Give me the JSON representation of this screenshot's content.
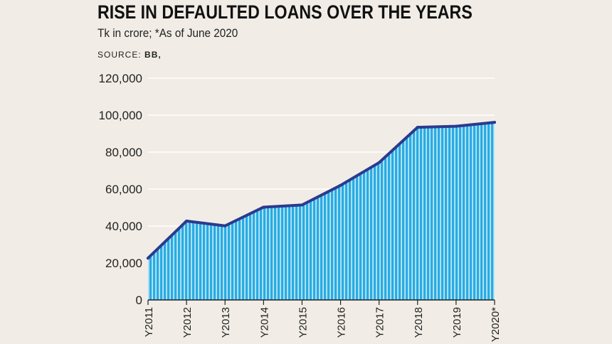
{
  "title": "RISE IN DEFAULTED LOANS OVER THE YEARS",
  "subtitle": "Tk in crore; *As of June 2020",
  "source_label": "SOURCE:",
  "source_value": "BB,",
  "colors": {
    "background": "#f1ede6",
    "area_fill": "#29abe2",
    "area_stripe": "#b9e6f7",
    "line": "#2b3a8f",
    "grid": "#ffffff",
    "axis": "#222222"
  },
  "chart_data": {
    "type": "area",
    "x": [
      "Y2011",
      "Y2012",
      "Y2013",
      "Y2014",
      "Y2015",
      "Y2016",
      "Y2017",
      "Y2018",
      "Y2019",
      "Y2020*"
    ],
    "series": [
      {
        "values": [
          22600,
          42700,
          40100,
          50200,
          51400,
          62000,
          74300,
          93400,
          94000,
          96100
        ]
      }
    ],
    "yticks": [
      "0",
      "20,000",
      "40,000",
      "60,000",
      "80,000",
      "100,000",
      "120,000"
    ],
    "ylim": [
      0,
      120000
    ],
    "grid": true
  }
}
